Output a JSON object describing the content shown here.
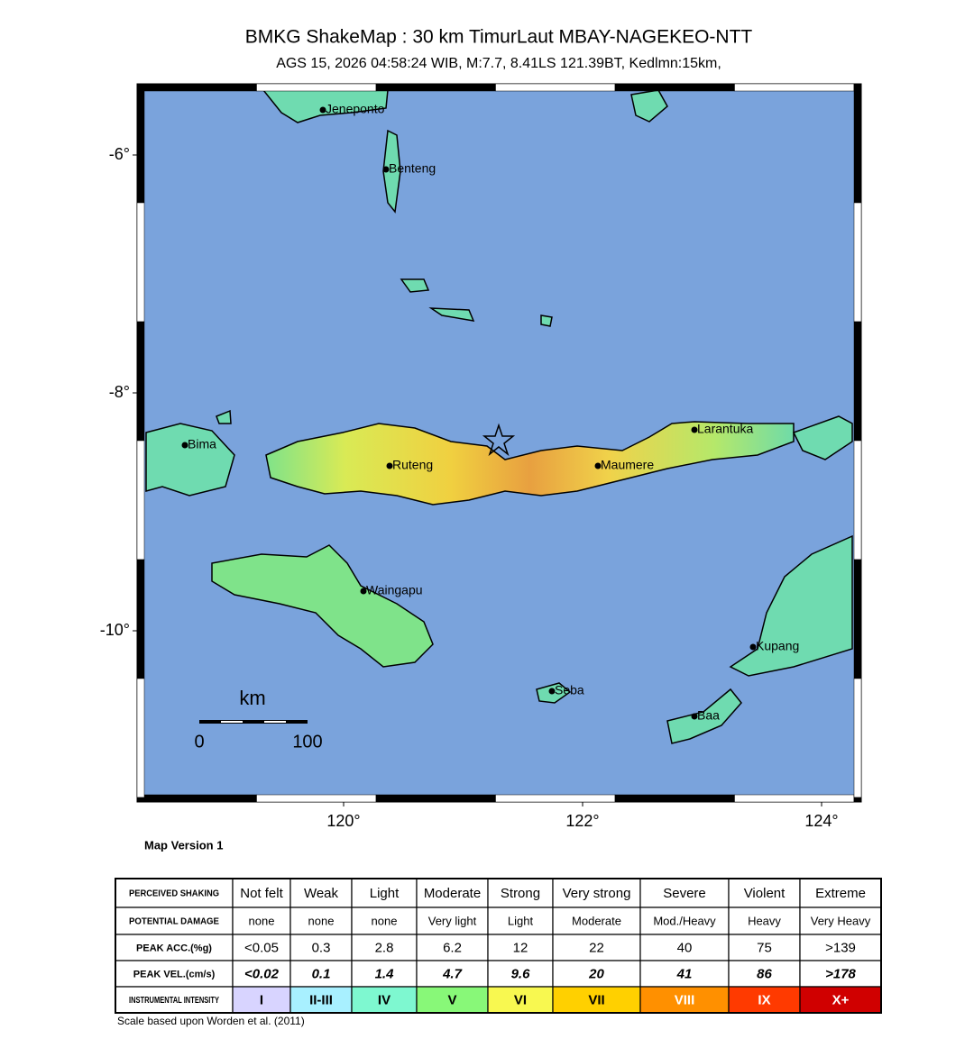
{
  "header": {
    "title": "BMKG ShakeMap : 30 km TimurLaut MBAY-NAGEKEO-NTT",
    "subtitle": "AGS 15, 2026 04:58:24 WIB, M:7.7, 8.41LS 121.39BT, Kedlmn:15km,"
  },
  "map": {
    "yticks": [
      {
        "value": -6,
        "label": "-6°"
      },
      {
        "value": -8,
        "label": "-8°"
      },
      {
        "value": -10,
        "label": "-10°"
      }
    ],
    "xticks": [
      {
        "value": 120,
        "label": "120°"
      },
      {
        "value": 122,
        "label": "122°"
      },
      {
        "value": 124,
        "label": "124°"
      }
    ],
    "cities": [
      "Jeneponto",
      "Benteng",
      "Bima",
      "Ruteng",
      "Maumere",
      "Larantuka",
      "Waingapu",
      "Kupang",
      "Seba",
      "Baa"
    ],
    "scale": {
      "unit": "km",
      "labels": [
        "0",
        "100"
      ]
    },
    "version": "Map Version 1"
  },
  "table": {
    "rows": [
      [
        "PERCEIVED SHAKING",
        "Not felt",
        "Weak",
        "Light",
        "Moderate",
        "Strong",
        "Very strong",
        "Severe",
        "Violent",
        "Extreme"
      ],
      [
        "POTENTIAL DAMAGE",
        "none",
        "none",
        "none",
        "Very light",
        "Light",
        "Moderate",
        "Mod./Heavy",
        "Heavy",
        "Very Heavy"
      ],
      [
        "PEAK ACC.(%g)",
        "<0.05",
        "0.3",
        "2.8",
        "6.2",
        "12",
        "22",
        "40",
        "75",
        ">139"
      ],
      [
        "PEAK VEL.(cm/s)",
        "<0.02",
        "0.1",
        "1.4",
        "4.7",
        "9.6",
        "20",
        "41",
        "86",
        ">178"
      ],
      [
        "INSTRUMENTAL INTENSITY",
        "I",
        "II-III",
        "IV",
        "V",
        "VI",
        "VII",
        "VIII",
        "IX",
        "X+"
      ]
    ]
  },
  "footnote": "Scale based upon Worden et al. (2011)"
}
